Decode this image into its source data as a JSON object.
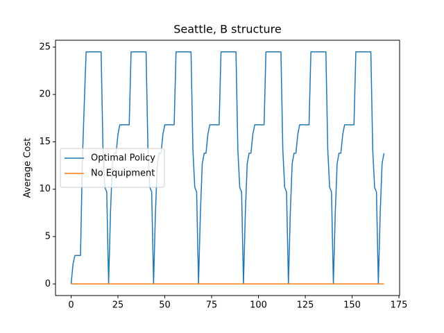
{
  "chart_data": {
    "type": "line",
    "title": "Seattle, B structure",
    "ylabel": "Average Cost",
    "x": [
      0,
      1,
      2,
      3,
      4,
      5,
      6,
      7,
      8,
      9,
      10,
      11,
      12,
      13,
      14,
      15,
      16,
      17,
      18,
      19,
      20,
      21,
      22,
      23,
      24,
      25,
      26,
      27,
      28,
      29,
      30,
      31,
      32,
      33,
      34,
      35,
      36,
      37,
      38,
      39,
      40,
      41,
      42,
      43,
      44,
      45,
      46,
      47,
      48,
      49,
      50,
      51,
      52,
      53,
      54,
      55,
      56,
      57,
      58,
      59,
      60,
      61,
      62,
      63,
      64,
      65,
      66,
      67,
      68,
      69,
      70,
      71,
      72,
      73,
      74,
      75,
      76,
      77,
      78,
      79,
      80,
      81,
      82,
      83,
      84,
      85,
      86,
      87,
      88,
      89,
      90,
      91,
      92,
      93,
      94,
      95,
      96,
      97,
      98,
      99,
      100,
      101,
      102,
      103,
      104,
      105,
      106,
      107,
      108,
      109,
      110,
      111,
      112,
      113,
      114,
      115,
      116,
      117,
      118,
      119,
      120,
      121,
      122,
      123,
      124,
      125,
      126,
      127,
      128,
      129,
      130,
      131,
      132,
      133,
      134,
      135,
      136,
      137,
      138,
      139,
      140,
      141,
      142,
      143,
      144,
      145,
      146,
      147,
      148,
      149,
      150,
      151,
      152,
      153,
      154,
      155,
      156,
      157,
      158,
      159,
      160,
      161,
      162,
      163,
      164,
      165,
      166,
      167
    ],
    "series": [
      {
        "name": "Optimal Policy",
        "color": "#1f77b4",
        "values": [
          0,
          2.1,
          3,
          3,
          3,
          3,
          13,
          19,
          24.5,
          24.5,
          24.5,
          24.5,
          24.5,
          24.5,
          24.5,
          24.5,
          24.5,
          14.2,
          10.2,
          9.7,
          0,
          7.5,
          12.7,
          13.8,
          13.8,
          15.8,
          16.8,
          16.8,
          16.8,
          16.8,
          16.8,
          16.8,
          24.5,
          24.5,
          24.5,
          24.5,
          24.5,
          24.5,
          24.5,
          24.5,
          24.5,
          14.2,
          10.2,
          9.7,
          0,
          7.5,
          12.7,
          13.8,
          13.8,
          15.8,
          16.8,
          16.8,
          16.8,
          16.8,
          16.8,
          16.8,
          24.5,
          24.5,
          24.5,
          24.5,
          24.5,
          24.5,
          24.5,
          24.5,
          24.5,
          14.2,
          10.2,
          9.7,
          0,
          7.5,
          12.7,
          13.8,
          13.8,
          15.8,
          16.8,
          16.8,
          16.8,
          16.8,
          16.8,
          16.8,
          24.5,
          24.5,
          24.5,
          24.5,
          24.5,
          24.5,
          24.5,
          24.5,
          24.5,
          14.2,
          10.2,
          9.7,
          0,
          7.5,
          12.7,
          13.8,
          13.8,
          15.8,
          16.8,
          16.8,
          16.8,
          16.8,
          16.8,
          16.8,
          24.5,
          24.5,
          24.5,
          24.5,
          24.5,
          24.5,
          24.5,
          24.5,
          24.5,
          14.2,
          10.2,
          9.7,
          0,
          7.5,
          12.7,
          13.8,
          13.8,
          15.8,
          16.8,
          16.8,
          16.8,
          16.8,
          16.8,
          16.8,
          24.5,
          24.5,
          24.5,
          24.5,
          24.5,
          24.5,
          24.5,
          24.5,
          24.5,
          14.2,
          10.2,
          9.7,
          0,
          7.5,
          12.7,
          13.8,
          13.8,
          15.8,
          16.8,
          16.8,
          16.8,
          16.8,
          16.8,
          16.8,
          24.5,
          24.5,
          24.5,
          24.5,
          24.5,
          24.5,
          24.5,
          24.5,
          24.5,
          14.2,
          10.2,
          9.7,
          0,
          7.5,
          12.7,
          13.8
        ]
      },
      {
        "name": "No Equipment",
        "color": "#ff7f0e",
        "values": [
          0,
          0,
          0,
          0,
          0,
          0,
          0,
          0,
          0,
          0,
          0,
          0,
          0,
          0,
          0,
          0,
          0,
          0,
          0,
          0,
          0,
          0,
          0,
          0,
          0,
          0,
          0,
          0,
          0,
          0,
          0,
          0,
          0,
          0,
          0,
          0,
          0,
          0,
          0,
          0,
          0,
          0,
          0,
          0,
          0,
          0,
          0,
          0,
          0,
          0,
          0,
          0,
          0,
          0,
          0,
          0,
          0,
          0,
          0,
          0,
          0,
          0,
          0,
          0,
          0,
          0,
          0,
          0,
          0,
          0,
          0,
          0,
          0,
          0,
          0,
          0,
          0,
          0,
          0,
          0,
          0,
          0,
          0,
          0,
          0,
          0,
          0,
          0,
          0,
          0,
          0,
          0,
          0,
          0,
          0,
          0,
          0,
          0,
          0,
          0,
          0,
          0,
          0,
          0,
          0,
          0,
          0,
          0,
          0,
          0,
          0,
          0,
          0,
          0,
          0,
          0,
          0,
          0,
          0,
          0,
          0,
          0,
          0,
          0,
          0,
          0,
          0,
          0,
          0,
          0,
          0,
          0,
          0,
          0,
          0,
          0,
          0,
          0,
          0,
          0,
          0,
          0,
          0,
          0,
          0,
          0,
          0,
          0,
          0,
          0,
          0,
          0,
          0,
          0,
          0,
          0,
          0,
          0,
          0,
          0,
          0,
          0,
          0,
          0,
          0,
          0,
          0,
          0
        ]
      }
    ],
    "xlim": [
      -8.35,
      175.35
    ],
    "xticks": [
      0,
      25,
      50,
      75,
      100,
      125,
      150,
      175
    ],
    "ylim": [
      -1.225,
      25.725
    ],
    "yticks": [
      0,
      5,
      10,
      15,
      20,
      25
    ],
    "grid": false,
    "legend": "center left"
  }
}
